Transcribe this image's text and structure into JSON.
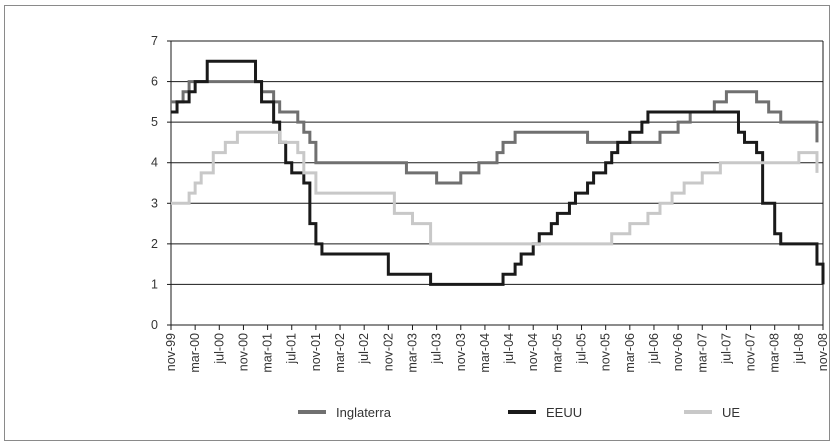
{
  "chart_data": {
    "type": "line",
    "title": "",
    "xlabel": "",
    "ylabel": "",
    "ylim": [
      0,
      7
    ],
    "yticks": [
      0,
      1,
      2,
      3,
      4,
      5,
      6,
      7
    ],
    "grid": true,
    "legend_position": "bottom",
    "x_ticks": [
      "nov-99",
      "mar-00",
      "jul-00",
      "nov-00",
      "mar-01",
      "jul-01",
      "nov-01",
      "mar-02",
      "jul-02",
      "nov-02",
      "mar-03",
      "jul-03",
      "nov-03",
      "mar-04",
      "jul-04",
      "nov-04",
      "mar-05",
      "jul-05",
      "nov-05",
      "mar-06",
      "jul-06",
      "nov-06",
      "mar-07",
      "jul-07",
      "nov-07",
      "mar-08",
      "jul-08",
      "nov-08"
    ],
    "x_range": [
      "1999-11",
      "2008-11"
    ],
    "series": [
      {
        "name": "Inglaterra",
        "color": "#707070",
        "points": [
          [
            "1999-11",
            5.5
          ],
          [
            "2000-01",
            5.75
          ],
          [
            "2000-02",
            6.0
          ],
          [
            "2001-02",
            5.75
          ],
          [
            "2001-04",
            5.5
          ],
          [
            "2001-05",
            5.25
          ],
          [
            "2001-08",
            5.0
          ],
          [
            "2001-09",
            4.75
          ],
          [
            "2001-10",
            4.5
          ],
          [
            "2001-11",
            4.0
          ],
          [
            "2003-02",
            3.75
          ],
          [
            "2003-07",
            3.5
          ],
          [
            "2003-11",
            3.75
          ],
          [
            "2004-02",
            4.0
          ],
          [
            "2004-05",
            4.25
          ],
          [
            "2004-06",
            4.5
          ],
          [
            "2004-08",
            4.75
          ],
          [
            "2005-08",
            4.5
          ],
          [
            "2006-08",
            4.75
          ],
          [
            "2006-11",
            5.0
          ],
          [
            "2007-01",
            5.25
          ],
          [
            "2007-05",
            5.5
          ],
          [
            "2007-07",
            5.75
          ],
          [
            "2007-12",
            5.5
          ],
          [
            "2008-02",
            5.25
          ],
          [
            "2008-04",
            5.0
          ],
          [
            "2008-10",
            4.5
          ]
        ]
      },
      {
        "name": "EEUU",
        "color": "#1a1a1a",
        "points": [
          [
            "1999-11",
            5.25
          ],
          [
            "1999-12",
            5.5
          ],
          [
            "2000-02",
            5.75
          ],
          [
            "2000-03",
            6.0
          ],
          [
            "2000-05",
            6.5
          ],
          [
            "2001-01",
            6.0
          ],
          [
            "2001-02",
            5.5
          ],
          [
            "2001-04",
            5.0
          ],
          [
            "2001-05",
            4.5
          ],
          [
            "2001-06",
            4.0
          ],
          [
            "2001-07",
            3.75
          ],
          [
            "2001-09",
            3.5
          ],
          [
            "2001-10",
            3.0
          ],
          [
            "2001-10",
            2.5
          ],
          [
            "2001-11",
            2.0
          ],
          [
            "2001-12",
            1.75
          ],
          [
            "2002-11",
            1.25
          ],
          [
            "2003-06",
            1.0
          ],
          [
            "2004-06",
            1.25
          ],
          [
            "2004-08",
            1.5
          ],
          [
            "2004-09",
            1.75
          ],
          [
            "2004-11",
            2.0
          ],
          [
            "2004-12",
            2.25
          ],
          [
            "2005-02",
            2.5
          ],
          [
            "2005-03",
            2.75
          ],
          [
            "2005-05",
            3.0
          ],
          [
            "2005-06",
            3.25
          ],
          [
            "2005-08",
            3.5
          ],
          [
            "2005-09",
            3.75
          ],
          [
            "2005-11",
            4.0
          ],
          [
            "2005-12",
            4.25
          ],
          [
            "2006-01",
            4.5
          ],
          [
            "2006-03",
            4.75
          ],
          [
            "2006-05",
            5.0
          ],
          [
            "2006-06",
            5.25
          ],
          [
            "2007-09",
            4.75
          ],
          [
            "2007-10",
            4.5
          ],
          [
            "2007-12",
            4.25
          ],
          [
            "2008-01",
            3.0
          ],
          [
            "2008-03",
            2.25
          ],
          [
            "2008-04",
            2.0
          ],
          [
            "2008-10",
            1.5
          ],
          [
            "2008-11",
            1.0
          ]
        ]
      },
      {
        "name": "UE",
        "color": "#c8c8c8",
        "points": [
          [
            "1999-11",
            3.0
          ],
          [
            "2000-02",
            3.25
          ],
          [
            "2000-03",
            3.5
          ],
          [
            "2000-04",
            3.75
          ],
          [
            "2000-06",
            4.25
          ],
          [
            "2000-08",
            4.5
          ],
          [
            "2000-10",
            4.75
          ],
          [
            "2001-05",
            4.5
          ],
          [
            "2001-08",
            4.25
          ],
          [
            "2001-09",
            3.75
          ],
          [
            "2001-11",
            3.25
          ],
          [
            "2002-12",
            2.75
          ],
          [
            "2003-03",
            2.5
          ],
          [
            "2003-06",
            2.0
          ],
          [
            "2005-12",
            2.25
          ],
          [
            "2006-03",
            2.5
          ],
          [
            "2006-06",
            2.75
          ],
          [
            "2006-08",
            3.0
          ],
          [
            "2006-10",
            3.25
          ],
          [
            "2006-12",
            3.5
          ],
          [
            "2007-03",
            3.75
          ],
          [
            "2007-06",
            4.0
          ],
          [
            "2008-07",
            4.25
          ],
          [
            "2008-10",
            3.75
          ]
        ]
      }
    ]
  }
}
